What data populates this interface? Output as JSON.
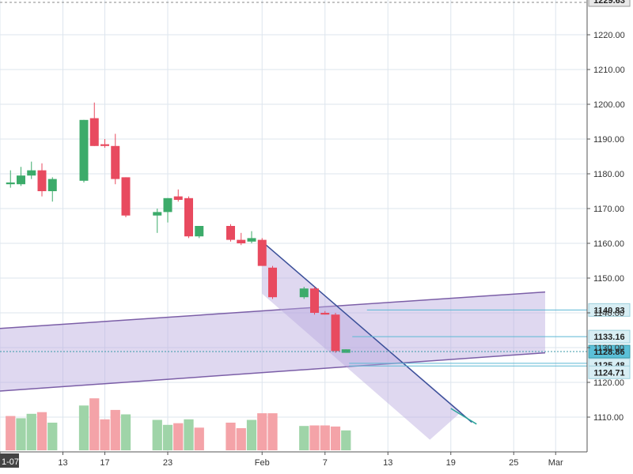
{
  "chart_data": {
    "type": "candlestick",
    "title": "",
    "xlabel": "",
    "ylabel": "",
    "ylim": [
      1100,
      1230
    ],
    "y_ticks": [
      1110.0,
      1120.0,
      1130.0,
      1140.0,
      1150.0,
      1160.0,
      1170.0,
      1180.0,
      1190.0,
      1200.0,
      1210.0,
      1220.0
    ],
    "y_tick_labels": [
      "1110.00",
      "1120.00",
      "1130.00",
      "1140.00",
      "1150.00",
      "1160.00",
      "1170.00",
      "1180.00",
      "1190.00",
      "1200.00",
      "1210.00",
      "1220.00"
    ],
    "x_range": [
      "2018-01-07",
      "2018-03-04"
    ],
    "x_ticks": [
      {
        "date": "2018-01-07",
        "label": "1-07"
      },
      {
        "date": "2018-01-13",
        "label": "13"
      },
      {
        "date": "2018-01-17",
        "label": "17"
      },
      {
        "date": "2018-01-23",
        "label": "23"
      },
      {
        "date": "2018-02-01",
        "label": "Feb"
      },
      {
        "date": "2018-02-07",
        "label": "7"
      },
      {
        "date": "2018-02-13",
        "label": "13"
      },
      {
        "date": "2018-02-19",
        "label": "19"
      },
      {
        "date": "2018-02-25",
        "label": "25"
      },
      {
        "date": "2018-03-01",
        "label": "Mar"
      }
    ],
    "grid": true,
    "colors": {
      "up": "#3cab6a",
      "down": "#e84a5f",
      "up_volume": "#9fd4a8",
      "down_volume": "#f4a3a8",
      "channel_fill": "#b8a9de",
      "channel_line": "#7b5ea7",
      "trend_line": "#3a4f99",
      "level_line": "#5bb8d4"
    },
    "candles": [
      {
        "date": "2018-01-08",
        "open": 1177.0,
        "high": 1181.0,
        "low": 1176.0,
        "close": 1177.5
      },
      {
        "date": "2018-01-09",
        "open": 1177.0,
        "high": 1182.0,
        "low": 1176.5,
        "close": 1179.5
      },
      {
        "date": "2018-01-10",
        "open": 1179.5,
        "high": 1183.5,
        "low": 1178.5,
        "close": 1181.0
      },
      {
        "date": "2018-01-11",
        "open": 1181.0,
        "high": 1183.0,
        "low": 1173.5,
        "close": 1175.0
      },
      {
        "date": "2018-01-12",
        "open": 1175.0,
        "high": 1179.0,
        "low": 1172.0,
        "close": 1178.5
      },
      {
        "date": "2018-01-15",
        "open": 1178.0,
        "high": 1195.5,
        "low": 1177.5,
        "close": 1195.5
      },
      {
        "date": "2018-01-16",
        "open": 1196.0,
        "high": 1200.5,
        "low": 1188.0,
        "close": 1188.0
      },
      {
        "date": "2018-01-17",
        "open": 1188.5,
        "high": 1190.0,
        "low": 1187.5,
        "close": 1188.0
      },
      {
        "date": "2018-01-18",
        "open": 1188.0,
        "high": 1191.5,
        "low": 1177.0,
        "close": 1178.5
      },
      {
        "date": "2018-01-19",
        "open": 1179.0,
        "high": 1179.0,
        "low": 1167.5,
        "close": 1168.0
      },
      {
        "date": "2018-01-22",
        "open": 1168.0,
        "high": 1170.0,
        "low": 1163.0,
        "close": 1169.0
      },
      {
        "date": "2018-01-23",
        "open": 1169.0,
        "high": 1173.0,
        "low": 1166.0,
        "close": 1173.0
      },
      {
        "date": "2018-01-24",
        "open": 1173.5,
        "high": 1175.5,
        "low": 1172.0,
        "close": 1172.5
      },
      {
        "date": "2018-01-25",
        "open": 1173.0,
        "high": 1173.5,
        "low": 1161.5,
        "close": 1162.0
      },
      {
        "date": "2018-01-26",
        "open": 1162.0,
        "high": 1165.0,
        "low": 1161.5,
        "close": 1165.0
      },
      {
        "date": "2018-01-29",
        "open": 1165.0,
        "high": 1165.5,
        "low": 1160.5,
        "close": 1161.0
      },
      {
        "date": "2018-01-30",
        "open": 1161.0,
        "high": 1163.0,
        "low": 1159.5,
        "close": 1160.0
      },
      {
        "date": "2018-01-31",
        "open": 1160.5,
        "high": 1163.5,
        "low": 1160.0,
        "close": 1161.5
      },
      {
        "date": "2018-02-01",
        "open": 1161.0,
        "high": 1161.5,
        "low": 1153.5,
        "close": 1153.5
      },
      {
        "date": "2018-02-02",
        "open": 1153.0,
        "high": 1153.5,
        "low": 1144.0,
        "close": 1144.5
      },
      {
        "date": "2018-02-05",
        "open": 1144.5,
        "high": 1147.5,
        "low": 1144.0,
        "close": 1147.0
      },
      {
        "date": "2018-02-06",
        "open": 1147.0,
        "high": 1147.5,
        "low": 1139.5,
        "close": 1140.0
      },
      {
        "date": "2018-02-07",
        "open": 1140.0,
        "high": 1140.5,
        "low": 1139.5,
        "close": 1139.5
      },
      {
        "date": "2018-02-08",
        "open": 1139.5,
        "high": 1140.0,
        "low": 1128.5,
        "close": 1129.0
      },
      {
        "date": "2018-02-09",
        "open": 1128.5,
        "high": 1129.5,
        "low": 1128.5,
        "close": 1129.5
      }
    ],
    "volume_direction": [
      "down",
      "up",
      "up",
      "down",
      "up",
      "up",
      "down",
      "down",
      "down",
      "up",
      "up",
      "up",
      "down",
      "up",
      "down",
      "down",
      "down",
      "up",
      "down",
      "down",
      "up",
      "down",
      "down",
      "down",
      "up"
    ],
    "volume_relative": [
      0.62,
      0.58,
      0.66,
      0.69,
      0.5,
      0.81,
      0.94,
      0.56,
      0.73,
      0.65,
      0.55,
      0.46,
      0.49,
      0.56,
      0.41,
      0.5,
      0.4,
      0.55,
      0.67,
      0.67,
      0.44,
      0.45,
      0.45,
      0.43,
      0.36
    ],
    "annotations": {
      "channel": {
        "upper_start": [
          "2018-01-07",
          1135.5
        ],
        "upper_end": [
          "2018-02-28",
          1146.0
        ],
        "lower_start": [
          "2018-01-07",
          1117.5
        ],
        "lower_end": [
          "2018-02-28",
          1128.5
        ]
      },
      "falling_channel": {
        "upper_start": [
          "2018-02-01",
          1160.5
        ],
        "upper_end": [
          "2018-02-21",
          1108.5
        ],
        "lower_start": [
          "2018-02-01",
          1145.5
        ],
        "lower_end": [
          "2018-02-17",
          1103.5
        ],
        "fill_end": [
          "2018-02-20",
          1111.5
        ]
      },
      "levels": [
        {
          "value": 1140.83,
          "label": "1140.83",
          "style": "solid"
        },
        {
          "value": 1133.16,
          "label": "1133.16",
          "style": "solid"
        },
        {
          "value": 1128.86,
          "label": "1128.86",
          "style": "dotted"
        },
        {
          "value": 1125.48,
          "label": "1125.48",
          "style": "solid"
        },
        {
          "value": 1124.71,
          "label": "1124.71",
          "style": "solid"
        }
      ]
    },
    "top_label": "1229.63"
  }
}
